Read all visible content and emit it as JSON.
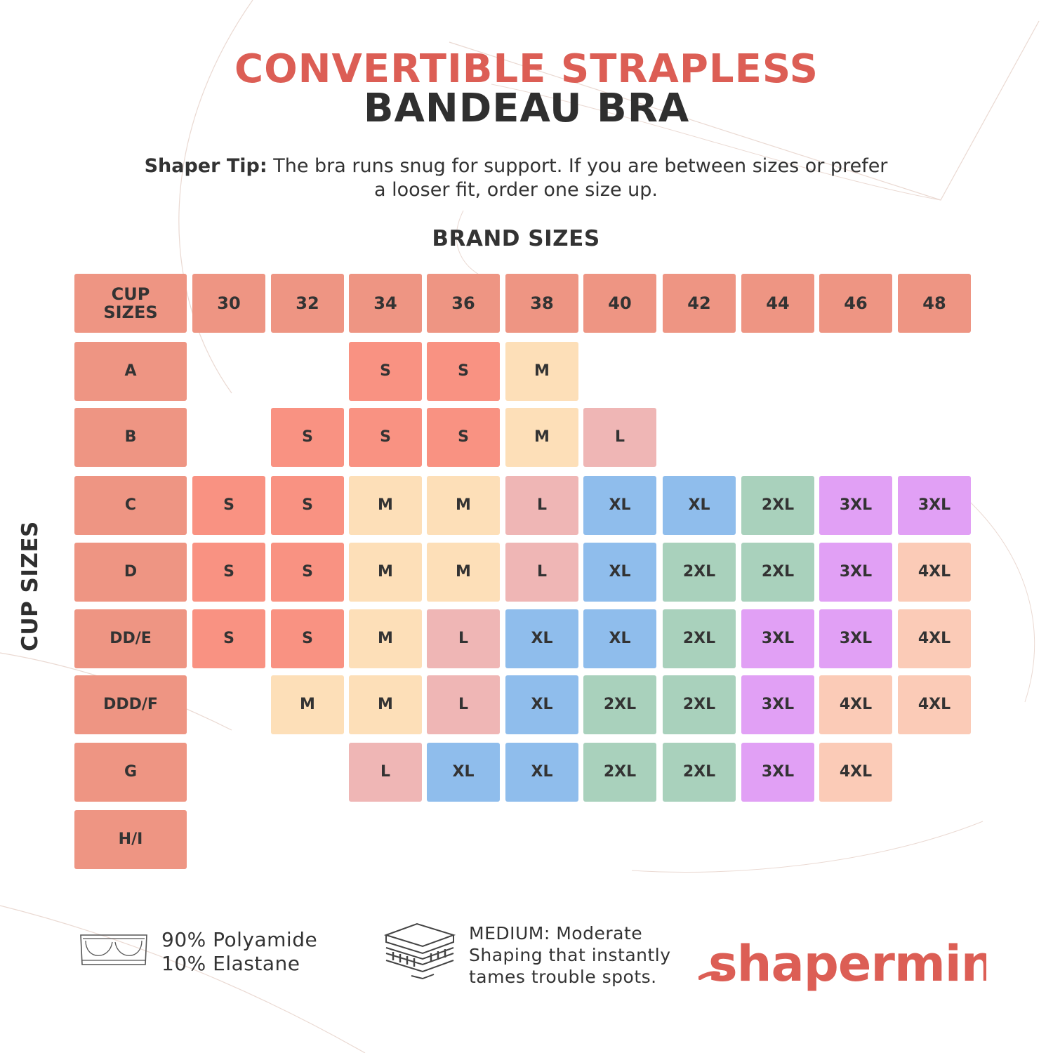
{
  "title": {
    "line1": "CONVERTIBLE STRAPLESS",
    "line2": "BANDEAU BRA"
  },
  "tip": {
    "label": "Shaper Tip:",
    "text": "The bra runs snug for support. If you are between sizes or prefer a looser fit, order one size up."
  },
  "brand_sizes_label": "BRAND SIZES",
  "cup_sizes_label": "CUP SIZES",
  "table": {
    "corner_label": "CUP SIZES",
    "bands": [
      "30",
      "32",
      "34",
      "36",
      "38",
      "40",
      "42",
      "44",
      "46",
      "48"
    ],
    "cups": [
      "A",
      "B",
      "C",
      "D",
      "DD/E",
      "DDD/F",
      "G",
      "H/I"
    ],
    "cells": [
      [
        "",
        "",
        "S",
        "S",
        "M",
        "",
        "",
        "",
        "",
        ""
      ],
      [
        "",
        "S",
        "S",
        "S",
        "M",
        "L",
        "",
        "",
        "",
        ""
      ],
      [
        "S",
        "S",
        "M",
        "M",
        "L",
        "XL",
        "XL",
        "2XL",
        "3XL",
        "3XL"
      ],
      [
        "S",
        "S",
        "M",
        "M",
        "L",
        "XL",
        "2XL",
        "2XL",
        "3XL",
        "4XL"
      ],
      [
        "S",
        "S",
        "M",
        "L",
        "XL",
        "XL",
        "2XL",
        "3XL",
        "3XL",
        "4XL"
      ],
      [
        "",
        "M",
        "M",
        "L",
        "XL",
        "2XL",
        "2XL",
        "3XL",
        "4XL",
        "4XL"
      ],
      [
        "",
        "",
        "L",
        "XL",
        "XL",
        "2XL",
        "2XL",
        "3XL",
        "4XL",
        ""
      ],
      [
        "",
        "",
        "",
        "",
        "",
        "",
        "",
        "",
        "",
        ""
      ]
    ]
  },
  "size_colors": {
    "S": "#f99282",
    "M": "#fddfb8",
    "L": "#efb6b5",
    "XL": "#8fbdec",
    "2XL": "#a9d1bc",
    "3XL": "#e1a0f5",
    "4XL": "#fbcbb7"
  },
  "header_color": "#ee9583",
  "material": {
    "icon": "bandeau-bra-icon",
    "line1": "90% Polyamide",
    "line2": "10% Elastane"
  },
  "shaping": {
    "icon": "layered-compression-icon",
    "line1": "MEDIUM: Moderate",
    "line2": "Shaping that instantly",
    "line3": "tames trouble spots."
  },
  "logo": {
    "text": "shapermint",
    "color": "#dc5e55"
  }
}
